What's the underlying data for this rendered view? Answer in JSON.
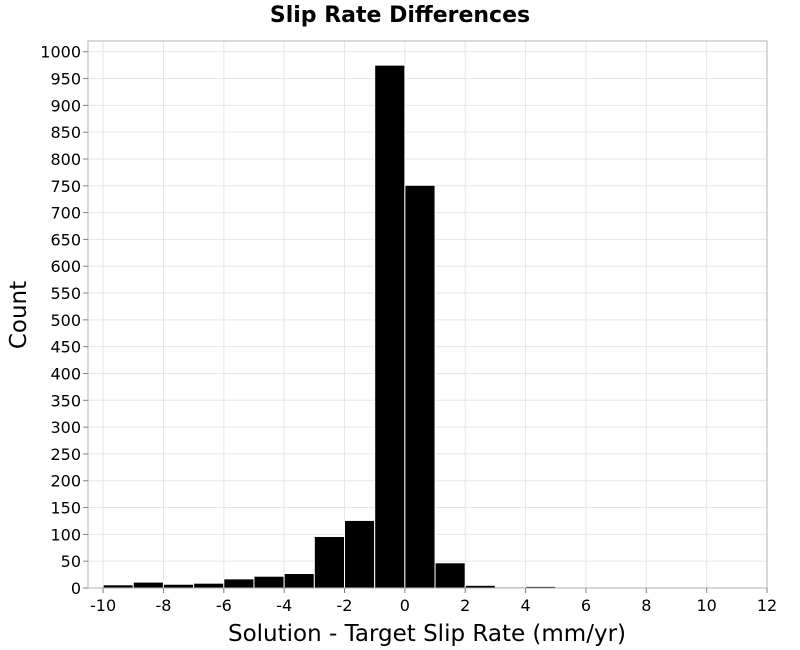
{
  "chart_data": {
    "type": "bar",
    "title": "Slip Rate Differences",
    "xlabel": "Solution - Target Slip Rate (mm/yr)",
    "ylabel": "Count",
    "xlim": [
      -10.5,
      12
    ],
    "ylim": [
      0,
      1020
    ],
    "x_ticks": [
      -10,
      -8,
      -6,
      -4,
      -2,
      0,
      2,
      4,
      6,
      8,
      10,
      12
    ],
    "x_tick_labels": [
      "-10",
      "-8",
      "-6",
      "-4",
      "-2",
      "0",
      "2",
      "4",
      "6",
      "8",
      "10",
      "12"
    ],
    "y_ticks": [
      0,
      50,
      100,
      150,
      200,
      250,
      300,
      350,
      400,
      450,
      500,
      550,
      600,
      650,
      700,
      750,
      800,
      850,
      900,
      950,
      1000
    ],
    "y_tick_labels": [
      "0",
      "50",
      "100",
      "150",
      "200",
      "250",
      "300",
      "350",
      "400",
      "450",
      "500",
      "550",
      "600",
      "650",
      "700",
      "750",
      "800",
      "850",
      "900",
      "950",
      "1000"
    ],
    "bin_width": 1,
    "bins": [
      {
        "center": -9.5,
        "count": 6
      },
      {
        "center": -8.5,
        "count": 11
      },
      {
        "center": -7.5,
        "count": 7
      },
      {
        "center": -6.5,
        "count": 9
      },
      {
        "center": -5.5,
        "count": 17
      },
      {
        "center": -4.5,
        "count": 22
      },
      {
        "center": -3.5,
        "count": 27
      },
      {
        "center": -2.5,
        "count": 96
      },
      {
        "center": -1.5,
        "count": 126
      },
      {
        "center": -0.5,
        "count": 975
      },
      {
        "center": 0.5,
        "count": 751
      },
      {
        "center": 1.5,
        "count": 47
      },
      {
        "center": 2.5,
        "count": 5
      },
      {
        "center": 3.5,
        "count": 2
      },
      {
        "center": 4.5,
        "count": 3
      }
    ],
    "grid": true,
    "colors": {
      "bar": "#000000",
      "grid": "#e6e6e6",
      "frame": "#b3b3b3"
    }
  }
}
